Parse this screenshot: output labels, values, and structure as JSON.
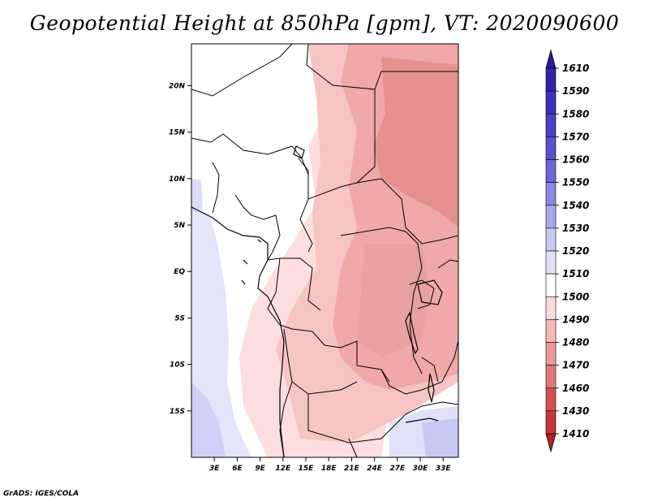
{
  "title": "Geopotential Height at 850hPa [gpm], VT: 2020090600",
  "footer": "GrADS: IGES/COLA",
  "lat_labels": [
    "20N",
    "15N",
    "10N",
    "5N",
    "EQ",
    "5S",
    "10S",
    "15S"
  ],
  "lat_values": [
    20,
    15,
    10,
    5,
    0,
    -5,
    -10,
    -15
  ],
  "lon_labels": [
    "3E",
    "6E",
    "9E",
    "12E",
    "15E",
    "18E",
    "21E",
    "24E",
    "27E",
    "30E",
    "33E"
  ],
  "lon_values": [
    3,
    6,
    9,
    12,
    15,
    18,
    21,
    24,
    27,
    30,
    33
  ],
  "extent": {
    "lon_min": 0,
    "lon_max": 35,
    "lat_min": -20,
    "lat_max": 24.5
  },
  "colorbar": {
    "levels": [
      "1610",
      "1590",
      "1580",
      "1570",
      "1560",
      "1550",
      "1540",
      "1530",
      "1520",
      "1510",
      "1500",
      "1490",
      "1480",
      "1470",
      "1460",
      "1430",
      "1410"
    ],
    "colors": [
      "#2a1a9c",
      "#3322aa",
      "#3b30b8",
      "#4a40c4",
      "#5a52cc",
      "#6c66d6",
      "#8a86e2",
      "#a8a8ec",
      "#c8c8f4",
      "#e2e2fa",
      "#ffffff",
      "#fcdcdc",
      "#f4b8b8",
      "#ec9898",
      "#e07878",
      "#d45252",
      "#c23838",
      "#b02424"
    ]
  },
  "colors": {
    "low_1490": "#fce0e0",
    "low_1480": "#f8c8c8",
    "low_1470": "#f0aaaa",
    "low_1460": "#e88e8e",
    "high_1520": "#e2e2fa",
    "high_1530": "#c8c8f4"
  }
}
